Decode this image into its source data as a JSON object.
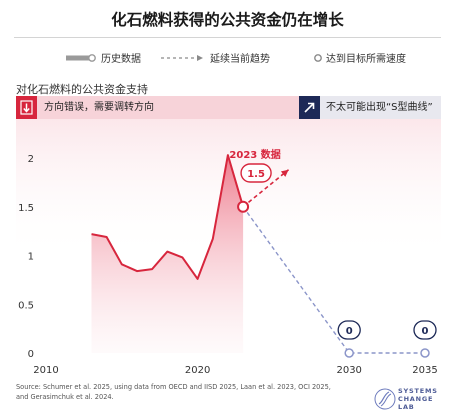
{
  "header": {
    "title": "化石燃料获得的公共资金仍在增长"
  },
  "legend": {
    "historical": "历史数据",
    "trend": "延续当前趋势",
    "target": "达到目标所需速度"
  },
  "section": {
    "title": "对化石燃料的公共资金支持",
    "band_left_text": "方向错误，需要调转方向",
    "band_right_text": "不太可能出现“S型曲线”"
  },
  "colors": {
    "historical": "#d7263d",
    "fill": "#f2a9b5",
    "target": "#8b95c9",
    "band_left": "#f7d3d9",
    "band_right": "#e8e8ef",
    "navy": "#1d2957"
  },
  "chart_data": {
    "type": "line",
    "title": "对化石燃料的公共资金支持",
    "xlabel": "",
    "ylabel": "",
    "xlim": [
      2010,
      2035
    ],
    "ylim": [
      0,
      2
    ],
    "x_ticks": [
      "2010",
      "2020",
      "2030",
      "2035"
    ],
    "y_ticks": [
      "0",
      "0.5",
      "1",
      "1.5",
      "2"
    ],
    "grid": false,
    "series": [
      {
        "name": "历史数据",
        "style": "solid-filled",
        "x": [
          2013,
          2014,
          2015,
          2016,
          2017,
          2018,
          2019,
          2020,
          2021,
          2022,
          2023
        ],
        "y": [
          1.22,
          1.19,
          0.91,
          0.84,
          0.86,
          1.04,
          0.98,
          0.76,
          1.17,
          2.03,
          1.5
        ]
      },
      {
        "name": "延续当前趋势",
        "style": "dashed-arrow",
        "x": [
          2023,
          2026
        ],
        "y": [
          1.5,
          1.88
        ]
      },
      {
        "name": "达到目标所需速度",
        "style": "dashed",
        "x": [
          2023,
          2030,
          2035
        ],
        "y": [
          1.5,
          0,
          0
        ]
      }
    ],
    "annotations": [
      {
        "label": "2023 数据",
        "value": "1.5",
        "x": 2023,
        "y": 1.5
      },
      {
        "value": "0",
        "x": 2030,
        "y": 0
      },
      {
        "value": "0",
        "x": 2035,
        "y": 0
      }
    ]
  },
  "footer": {
    "source_lines": [
      "Source: Schumer et al. 2025, using data from OECD and IISD 2025, Laan et al. 2023, OCI 2025,",
      "and Gerasimchuk et al. 2024."
    ],
    "logo_lines": [
      "SYSTEMS",
      "CHANGE",
      "LAB"
    ]
  }
}
